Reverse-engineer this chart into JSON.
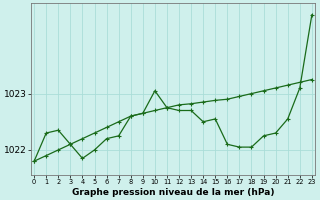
{
  "background_color": "#cff0ec",
  "grid_color": "#aaddd8",
  "line_color": "#1a6b1a",
  "xlabel": "Graphe pression niveau de la mer (hPa)",
  "yticks": [
    1022,
    1023
  ],
  "xticks": [
    0,
    1,
    2,
    3,
    4,
    5,
    6,
    7,
    8,
    9,
    10,
    11,
    12,
    13,
    14,
    15,
    16,
    17,
    18,
    19,
    20,
    21,
    22,
    23
  ],
  "xlim": [
    -0.3,
    23.3
  ],
  "ylim": [
    1021.55,
    1024.6
  ],
  "series1_x": [
    0,
    1,
    2,
    3,
    4,
    5,
    6,
    7,
    8,
    9,
    10,
    11,
    12,
    13,
    14,
    15,
    16,
    17,
    18,
    19,
    20,
    21,
    22,
    23
  ],
  "series1_y": [
    1021.8,
    1021.9,
    1022.0,
    1022.1,
    1022.2,
    1022.3,
    1022.4,
    1022.5,
    1022.6,
    1022.65,
    1022.7,
    1022.75,
    1022.8,
    1022.82,
    1022.85,
    1022.88,
    1022.9,
    1022.95,
    1023.0,
    1023.05,
    1023.1,
    1023.15,
    1023.2,
    1023.25
  ],
  "series2_x": [
    0,
    1,
    2,
    3,
    4,
    5,
    6,
    7,
    8,
    9,
    10,
    11,
    12,
    13,
    14,
    15,
    16,
    17,
    18,
    19,
    20,
    21,
    22,
    23
  ],
  "series2_y": [
    1021.8,
    1022.3,
    1022.35,
    1022.1,
    1021.85,
    1022.0,
    1022.2,
    1022.25,
    1022.6,
    1022.65,
    1023.05,
    1022.75,
    1022.7,
    1022.7,
    1022.5,
    1022.55,
    1022.1,
    1022.05,
    1022.05,
    1022.25,
    1022.3,
    1022.55,
    1023.1,
    1024.4
  ]
}
